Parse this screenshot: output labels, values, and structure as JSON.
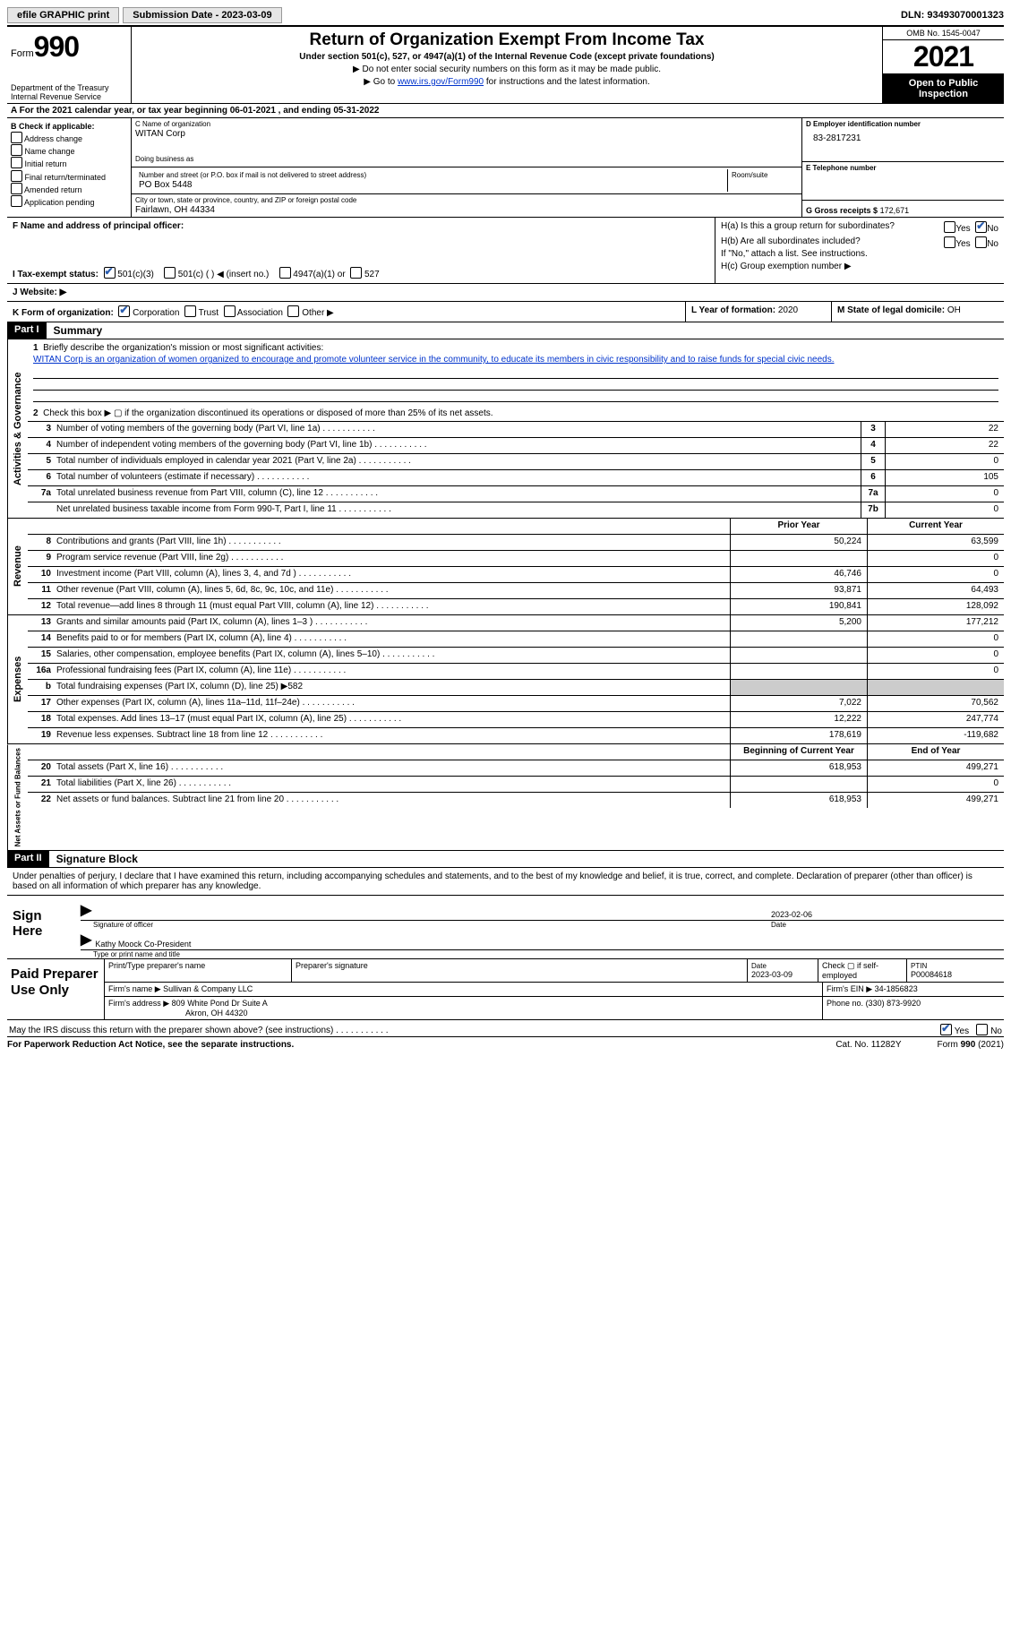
{
  "topbar": {
    "efile": "efile GRAPHIC print",
    "submission": "Submission Date - 2023-03-09",
    "dln": "DLN: 93493070001323"
  },
  "header": {
    "form_word": "Form",
    "form_num": "990",
    "dept": "Department of the Treasury",
    "irs": "Internal Revenue Service",
    "title": "Return of Organization Exempt From Income Tax",
    "sub": "Under section 501(c), 527, or 4947(a)(1) of the Internal Revenue Code (except private foundations)",
    "note1": "▶ Do not enter social security numbers on this form as it may be made public.",
    "note2_pre": "▶ Go to ",
    "note2_link": "www.irs.gov/Form990",
    "note2_post": " for instructions and the latest information.",
    "omb": "OMB No. 1545-0047",
    "year": "2021",
    "inspect": "Open to Public Inspection"
  },
  "rowA": {
    "text": "A For the 2021 calendar year, or tax year beginning 06-01-2021    , and ending 05-31-2022"
  },
  "colB": {
    "title": "B Check if applicable:",
    "items": [
      "Address change",
      "Name change",
      "Initial return",
      "Final return/terminated",
      "Amended return",
      "Application pending"
    ]
  },
  "colC": {
    "c_label": "C Name of organization",
    "c_val": "WITAN Corp",
    "dba_label": "Doing business as",
    "addr_label": "Number and street (or P.O. box if mail is not delivered to street address)",
    "addr_val": "PO Box 5448",
    "room_label": "Room/suite",
    "city_label": "City or town, state or province, country, and ZIP or foreign postal code",
    "city_val": "Fairlawn, OH  44334"
  },
  "colDE": {
    "d_label": "D Employer identification number",
    "d_val": "83-2817231",
    "e_label": "E Telephone number",
    "g_label": "G Gross receipts $",
    "g_val": "172,671"
  },
  "f": {
    "label": "F  Name and address of principal officer:"
  },
  "h": {
    "ha": "H(a)  Is this a group return for subordinates?",
    "hb": "H(b)  Are all subordinates included?",
    "hnote": "If \"No,\" attach a list. See instructions.",
    "hc": "H(c)  Group exemption number ▶",
    "yes": "Yes",
    "no": "No"
  },
  "i": {
    "label": "I   Tax-exempt status:",
    "o1": "501(c)(3)",
    "o2": "501(c) (  ) ◀ (insert no.)",
    "o3": "4947(a)(1) or",
    "o4": "527"
  },
  "j": {
    "label": "J   Website: ▶"
  },
  "k": {
    "label": "K Form of organization:",
    "o1": "Corporation",
    "o2": "Trust",
    "o3": "Association",
    "o4": "Other ▶"
  },
  "l": {
    "label": "L Year of formation:",
    "val": "2020"
  },
  "m": {
    "label": "M State of legal domicile:",
    "val": "OH"
  },
  "part1": {
    "tag": "Part I",
    "title": "Summary",
    "l1a": "Briefly describe the organization's mission or most significant activities:",
    "l1b": "WITAN Corp is an organization of women organized to encourage and promote volunteer service in the community, to educate its members in civic responsibility and to raise funds for special civic needs.",
    "l2": "Check this box ▶ ▢  if the organization discontinued its operations or disposed of more than 25% of its net assets.",
    "vert_ag": "Activities & Governance",
    "vert_rev": "Revenue",
    "vert_exp": "Expenses",
    "vert_na": "Net Assets or Fund Balances",
    "lines_ag": [
      {
        "n": "3",
        "d": "Number of voting members of the governing body (Part VI, line 1a)",
        "box": "3",
        "v": "22"
      },
      {
        "n": "4",
        "d": "Number of independent voting members of the governing body (Part VI, line 1b)",
        "box": "4",
        "v": "22"
      },
      {
        "n": "5",
        "d": "Total number of individuals employed in calendar year 2021 (Part V, line 2a)",
        "box": "5",
        "v": "0"
      },
      {
        "n": "6",
        "d": "Total number of volunteers (estimate if necessary)",
        "box": "6",
        "v": "105"
      },
      {
        "n": "7a",
        "d": "Total unrelated business revenue from Part VIII, column (C), line 12",
        "box": "7a",
        "v": "0"
      },
      {
        "n": "",
        "d": "Net unrelated business taxable income from Form 990-T, Part I, line 11",
        "box": "7b",
        "v": "0"
      }
    ],
    "col_prior": "Prior Year",
    "col_curr": "Current Year",
    "lines_rev": [
      {
        "n": "8",
        "d": "Contributions and grants (Part VIII, line 1h)",
        "p": "50,224",
        "c": "63,599"
      },
      {
        "n": "9",
        "d": "Program service revenue (Part VIII, line 2g)",
        "p": "",
        "c": "0"
      },
      {
        "n": "10",
        "d": "Investment income (Part VIII, column (A), lines 3, 4, and 7d )",
        "p": "46,746",
        "c": "0"
      },
      {
        "n": "11",
        "d": "Other revenue (Part VIII, column (A), lines 5, 6d, 8c, 9c, 10c, and 11e)",
        "p": "93,871",
        "c": "64,493"
      },
      {
        "n": "12",
        "d": "Total revenue—add lines 8 through 11 (must equal Part VIII, column (A), line 12)",
        "p": "190,841",
        "c": "128,092"
      }
    ],
    "lines_exp": [
      {
        "n": "13",
        "d": "Grants and similar amounts paid (Part IX, column (A), lines 1–3 )",
        "p": "5,200",
        "c": "177,212"
      },
      {
        "n": "14",
        "d": "Benefits paid to or for members (Part IX, column (A), line 4)",
        "p": "",
        "c": "0"
      },
      {
        "n": "15",
        "d": "Salaries, other compensation, employee benefits (Part IX, column (A), lines 5–10)",
        "p": "",
        "c": "0"
      },
      {
        "n": "16a",
        "d": "Professional fundraising fees (Part IX, column (A), line 11e)",
        "p": "",
        "c": "0"
      },
      {
        "n": "b",
        "d": "Total fundraising expenses (Part IX, column (D), line 25) ▶582",
        "p": "SHADE",
        "c": "SHADE"
      },
      {
        "n": "17",
        "d": "Other expenses (Part IX, column (A), lines 11a–11d, 11f–24e)",
        "p": "7,022",
        "c": "70,562"
      },
      {
        "n": "18",
        "d": "Total expenses. Add lines 13–17 (must equal Part IX, column (A), line 25)",
        "p": "12,222",
        "c": "247,774"
      },
      {
        "n": "19",
        "d": "Revenue less expenses. Subtract line 18 from line 12",
        "p": "178,619",
        "c": "-119,682"
      }
    ],
    "col_beg": "Beginning of Current Year",
    "col_end": "End of Year",
    "lines_na": [
      {
        "n": "20",
        "d": "Total assets (Part X, line 16)",
        "p": "618,953",
        "c": "499,271"
      },
      {
        "n": "21",
        "d": "Total liabilities (Part X, line 26)",
        "p": "",
        "c": "0"
      },
      {
        "n": "22",
        "d": "Net assets or fund balances. Subtract line 21 from line 20",
        "p": "618,953",
        "c": "499,271"
      }
    ]
  },
  "part2": {
    "tag": "Part II",
    "title": "Signature Block",
    "decl": "Under penalties of perjury, I declare that I have examined this return, including accompanying schedules and statements, and to the best of my knowledge and belief, it is true, correct, and complete. Declaration of preparer (other than officer) is based on all information of which preparer has any knowledge."
  },
  "sign": {
    "label": "Sign Here",
    "sig_officer": "Signature of officer",
    "date": "Date",
    "date_val": "2023-02-06",
    "name": "Kathy Moock  Co-President",
    "name_label": "Type or print name and title"
  },
  "paid": {
    "label": "Paid Preparer Use Only",
    "r1c1": "Print/Type preparer's name",
    "r1c2": "Preparer's signature",
    "r1c3l": "Date",
    "r1c3v": "2023-03-09",
    "r1c4": "Check ▢ if self-employed",
    "r1c5l": "PTIN",
    "r1c5v": "P00084618",
    "r2c1": "Firm's name    ▶",
    "r2c1v": "Sullivan & Company LLC",
    "r2c2": "Firm's EIN ▶",
    "r2c2v": "34-1856823",
    "r3c1": "Firm's address ▶",
    "r3c1v": "809 White Pond Dr Suite A",
    "r3c1v2": "Akron, OH  44320",
    "r3c2": "Phone no.",
    "r3c2v": "(330) 873-9920"
  },
  "footer": {
    "q": "May the IRS discuss this return with the preparer shown above? (see instructions)",
    "yes": "Yes",
    "no": "No",
    "pra": "For Paperwork Reduction Act Notice, see the separate instructions.",
    "cat": "Cat. No. 11282Y",
    "form": "Form 990 (2021)"
  }
}
